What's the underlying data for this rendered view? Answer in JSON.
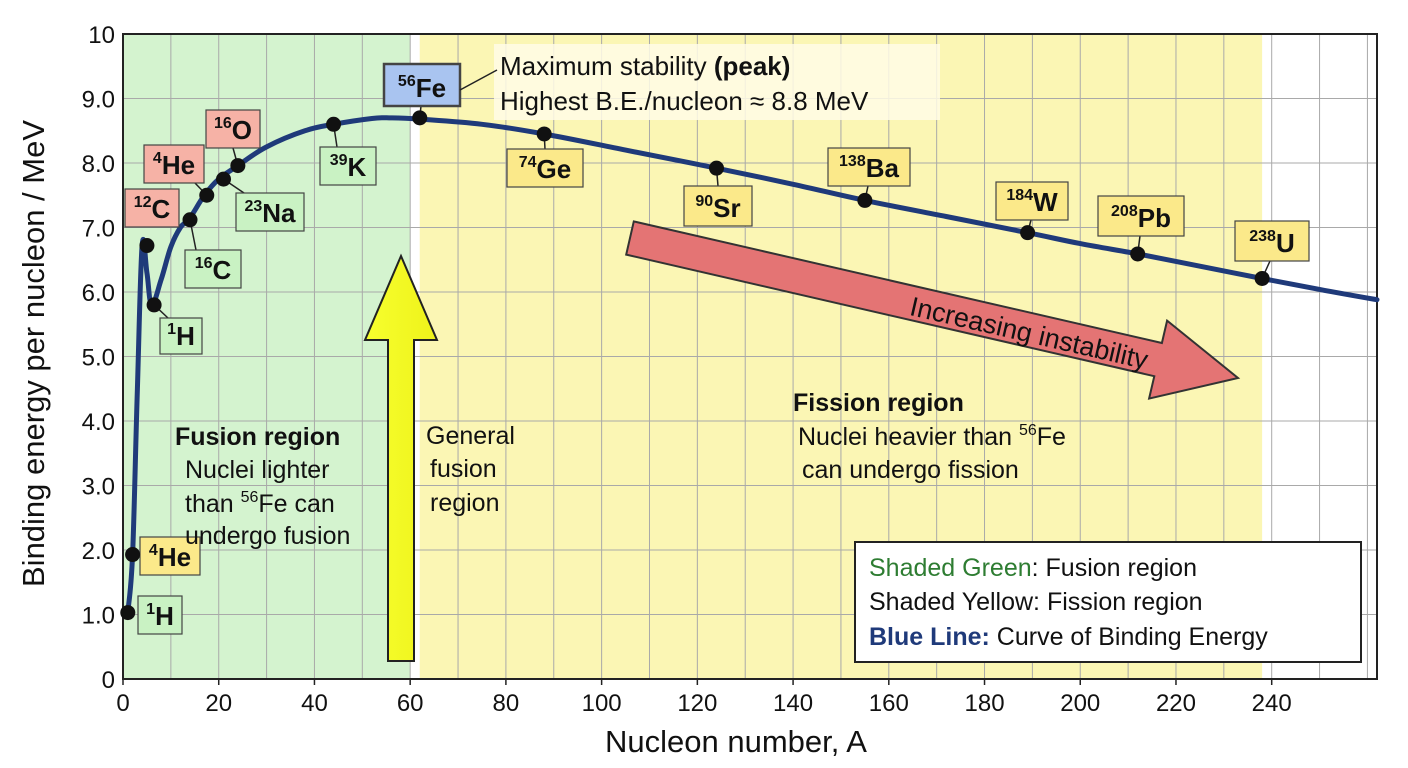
{
  "chart_data": {
    "type": "line",
    "xlabel": "Nucleon number, A",
    "ylabel": "Binding energy per nucleon / MeV",
    "xlim": [
      0,
      262
    ],
    "ylim": [
      0,
      10
    ],
    "x_ticks": [
      "0",
      "20",
      "40",
      "60",
      "80",
      "100",
      "120",
      "140",
      "160",
      "180",
      "200",
      "220",
      "240"
    ],
    "y_ticks": [
      "0",
      "1.0",
      "2.0",
      "3.0",
      "4.0",
      "5.0",
      "6.0",
      "7.0",
      "8.0",
      "9.0",
      "10"
    ],
    "grid": true,
    "regions": [
      {
        "name": "fusion",
        "from": 0,
        "to": 60,
        "color": "#d4f3cf"
      },
      {
        "name": "fission",
        "from": 62,
        "to": 238,
        "color": "#fbf6b4"
      }
    ],
    "curve_color": "#1f3a7a",
    "curve": {
      "x": [
        1,
        2,
        3,
        4,
        5,
        6,
        8,
        10,
        12,
        14,
        17,
        20,
        24,
        30,
        38,
        44,
        52,
        56,
        62,
        75,
        88,
        105,
        124,
        140,
        155,
        172,
        189,
        200,
        212,
        225,
        238,
        250,
        262
      ],
      "y": [
        1.03,
        1.93,
        4.5,
        6.72,
        6.3,
        5.8,
        6.2,
        6.7,
        7.0,
        7.15,
        7.5,
        7.75,
        7.96,
        8.25,
        8.5,
        8.6,
        8.69,
        8.7,
        8.68,
        8.6,
        8.45,
        8.2,
        7.92,
        7.67,
        7.42,
        7.17,
        6.92,
        6.75,
        6.59,
        6.4,
        6.21,
        6.04,
        5.88
      ]
    },
    "points": [
      {
        "x": 1,
        "y": 1.03,
        "sup": "1",
        "el": "H"
      },
      {
        "x": 2,
        "y": 1.93,
        "sup": "4",
        "el": "He"
      },
      {
        "x": 5,
        "y": 6.72,
        "sup": "12",
        "el": "C"
      },
      {
        "x": 6.5,
        "y": 5.8,
        "sup": "1",
        "el": "H"
      },
      {
        "x": 14,
        "y": 7.12,
        "sup": "16",
        "el": "C"
      },
      {
        "x": 17.5,
        "y": 7.5,
        "sup": "4",
        "el": "He"
      },
      {
        "x": 21,
        "y": 7.75,
        "sup": "23",
        "el": "Na"
      },
      {
        "x": 24,
        "y": 7.96,
        "sup": "16",
        "el": "O"
      },
      {
        "x": 44,
        "y": 8.6,
        "sup": "39",
        "el": "K"
      },
      {
        "x": 62,
        "y": 8.7,
        "sup": "56",
        "el": "Fe"
      },
      {
        "x": 88,
        "y": 8.45,
        "sup": "74",
        "el": "Ge"
      },
      {
        "x": 124,
        "y": 7.92,
        "sup": "90",
        "el": "Sr"
      },
      {
        "x": 155,
        "y": 7.42,
        "sup": "138",
        "el": "Ba"
      },
      {
        "x": 189,
        "y": 6.92,
        "sup": "184",
        "el": "W"
      },
      {
        "x": 212,
        "y": 6.59,
        "sup": "208",
        "el": "Pb"
      },
      {
        "x": 238,
        "y": 6.21,
        "sup": "238",
        "el": "U"
      }
    ],
    "annotations": {
      "peak_line1": "Maximum stability ",
      "peak_line1_bold": "(peak)",
      "peak_line2": "Highest B.E./nucleon ≈ 8.8 MeV",
      "fusion_title": "Fusion region",
      "fusion_l1": "Nuclei lighter",
      "fusion_l2a": "than ",
      "fusion_l2_sup": "56",
      "fusion_l2b": "Fe can",
      "fusion_l3": "undergo fusion",
      "general_l1": "General",
      "general_l2": "fusion",
      "general_l3": "region",
      "fission_title": "Fission region",
      "fission_l1a": "Nuclei heavier than ",
      "fission_l1_sup": "56",
      "fission_l1b": "Fe",
      "fission_l2": "can undergo fission",
      "instability": "Increasing instability"
    },
    "legend": {
      "green_label": "Shaded Green",
      "green_rest": ": Fusion region",
      "yellow_label": "Shaded Yellow",
      "yellow_rest": ": Fission region",
      "blue_label": "Blue Line:",
      "blue_rest": " Curve of Binding Energy",
      "green_color": "#2e7d32",
      "yellow_color": "#111111",
      "blue_color": "#1f3a7a"
    }
  }
}
